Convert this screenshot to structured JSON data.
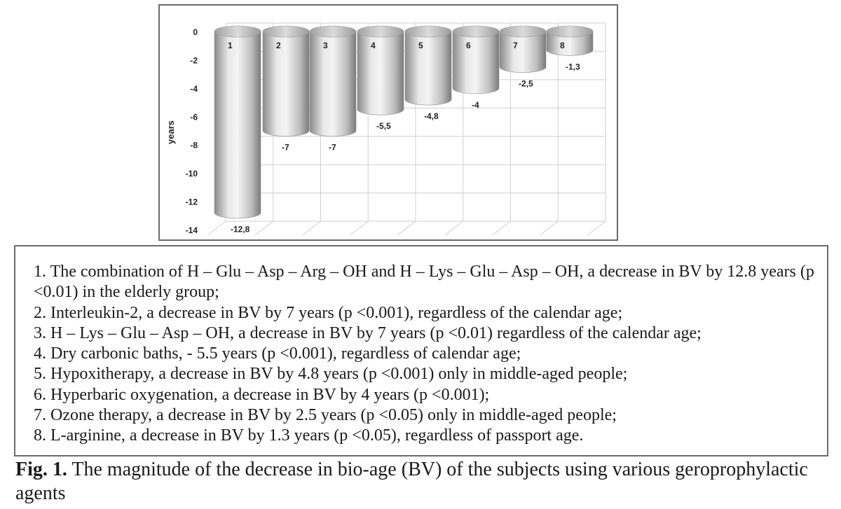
{
  "chart_data": {
    "type": "bar",
    "categories": [
      "1",
      "2",
      "3",
      "4",
      "5",
      "6",
      "7",
      "8"
    ],
    "values": [
      -12.8,
      -7,
      -7,
      -5.5,
      -4.8,
      -4,
      -2.5,
      -1.3
    ],
    "value_labels": [
      "-12,8",
      "-7",
      "-7",
      "-5,5",
      "-4,8",
      "-4",
      "-2,5",
      "-1,3"
    ],
    "title": "",
    "xlabel": "",
    "ylabel": "years",
    "ylim": [
      -14,
      0
    ],
    "yticks": [
      "0",
      "-2",
      "-4",
      "-6",
      "-8",
      "-10",
      "-12",
      "-14"
    ],
    "grid": true,
    "bar_style": "3d cylinder, grey"
  },
  "legend": {
    "items": [
      "1. The combination of H – Glu – Asp – Arg – OH and H – Lys – Glu – Asp – OH, a decrease in BV by 12.8 years (p <0.01) in the elderly group;",
      "2. Interleukin-2, a decrease in BV by 7 years (p <0.001), regardless of the calendar age;",
      "3. H – Lys – Glu – Asp – OH, a decrease in BV by 7 years (p <0.01) regardless of the calendar age;",
      "4. Dry carbonic baths, - 5.5 years (p <0.001), regardless of calendar age;",
      "5. Hypoxitherapy, a decrease in BV by 4.8 years (p <0.001) only in middle-aged people;",
      "6. Hyperbaric oxygenation, a decrease in BV by 4 years (p <0.001);",
      "7. Ozone therapy, a decrease in BV by 2.5 years (p <0.05) only in middle-aged people;",
      "8. L-arginine, a decrease in BV by 1.3 years (p <0.05), regardless of passport age."
    ]
  },
  "caption": {
    "label": "Fig. 1.",
    "text": " The magnitude of the decrease in bio-age (BV) of the subjects using various geroprophylactic agents"
  },
  "colors": {
    "bar_light": "#f2f2f2",
    "bar_mid": "#bdbdbd",
    "bar_dark": "#7a7a7a",
    "grid": "#cfcfcf",
    "frame": "#6b6b6b"
  }
}
